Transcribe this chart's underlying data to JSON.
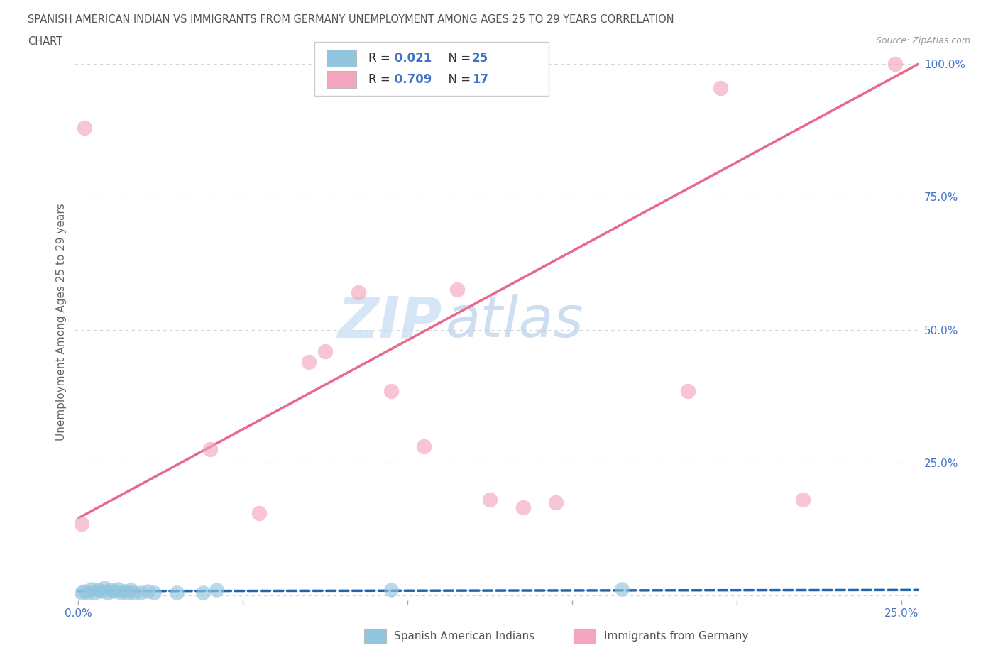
{
  "title_line1": "SPANISH AMERICAN INDIAN VS IMMIGRANTS FROM GERMANY UNEMPLOYMENT AMONG AGES 25 TO 29 YEARS CORRELATION",
  "title_line2": "CHART",
  "source_text": "Source: ZipAtlas.com",
  "ylabel": "Unemployment Among Ages 25 to 29 years",
  "xlim": [
    -0.001,
    0.255
  ],
  "ylim": [
    -0.01,
    1.04
  ],
  "watermark_zip": "ZIP",
  "watermark_atlas": "atlas",
  "legend_r1_black": "R = ",
  "legend_r1_blue": "0.021",
  "legend_r1_n_black": "  N = ",
  "legend_r1_n_blue": "25",
  "legend_r2_black": "R = ",
  "legend_r2_blue": "0.709",
  "legend_r2_n_black": "  N = ",
  "legend_r2_n_blue": "17",
  "blue_fill": "#92c5de",
  "pink_fill": "#f4a6be",
  "blue_line_color": "#2166ac",
  "pink_line_color": "#e8698a",
  "title_color": "#555555",
  "tick_color": "#4472c4",
  "grid_color": "#d0d0d0",
  "source_color": "#999999",
  "watermark_color": "#cde0f5",
  "blue_scatter_x": [
    0.001,
    0.002,
    0.003,
    0.004,
    0.005,
    0.006,
    0.007,
    0.008,
    0.009,
    0.01,
    0.011,
    0.012,
    0.013,
    0.014,
    0.015,
    0.016,
    0.017,
    0.019,
    0.021,
    0.023,
    0.03,
    0.038,
    0.042,
    0.095,
    0.165
  ],
  "blue_scatter_y": [
    0.005,
    0.008,
    0.005,
    0.012,
    0.005,
    0.01,
    0.008,
    0.015,
    0.005,
    0.01,
    0.008,
    0.012,
    0.005,
    0.008,
    0.005,
    0.01,
    0.005,
    0.005,
    0.008,
    0.005,
    0.005,
    0.005,
    0.01,
    0.01,
    0.012
  ],
  "pink_scatter_x": [
    0.001,
    0.002,
    0.04,
    0.055,
    0.07,
    0.075,
    0.085,
    0.095,
    0.105,
    0.115,
    0.125,
    0.135,
    0.145,
    0.185,
    0.195,
    0.22,
    0.248
  ],
  "pink_scatter_y": [
    0.135,
    0.88,
    0.275,
    0.155,
    0.44,
    0.46,
    0.57,
    0.385,
    0.28,
    0.575,
    0.18,
    0.165,
    0.175,
    0.385,
    0.955,
    0.18,
    1.0
  ],
  "blue_line_x": [
    0.0,
    0.255
  ],
  "blue_line_y": [
    0.008,
    0.01
  ],
  "pink_line_x": [
    0.0,
    0.255
  ],
  "pink_line_y": [
    0.145,
    1.0
  ],
  "bottom_legend_blue": "Spanish American Indians",
  "bottom_legend_pink": "Immigrants from Germany"
}
